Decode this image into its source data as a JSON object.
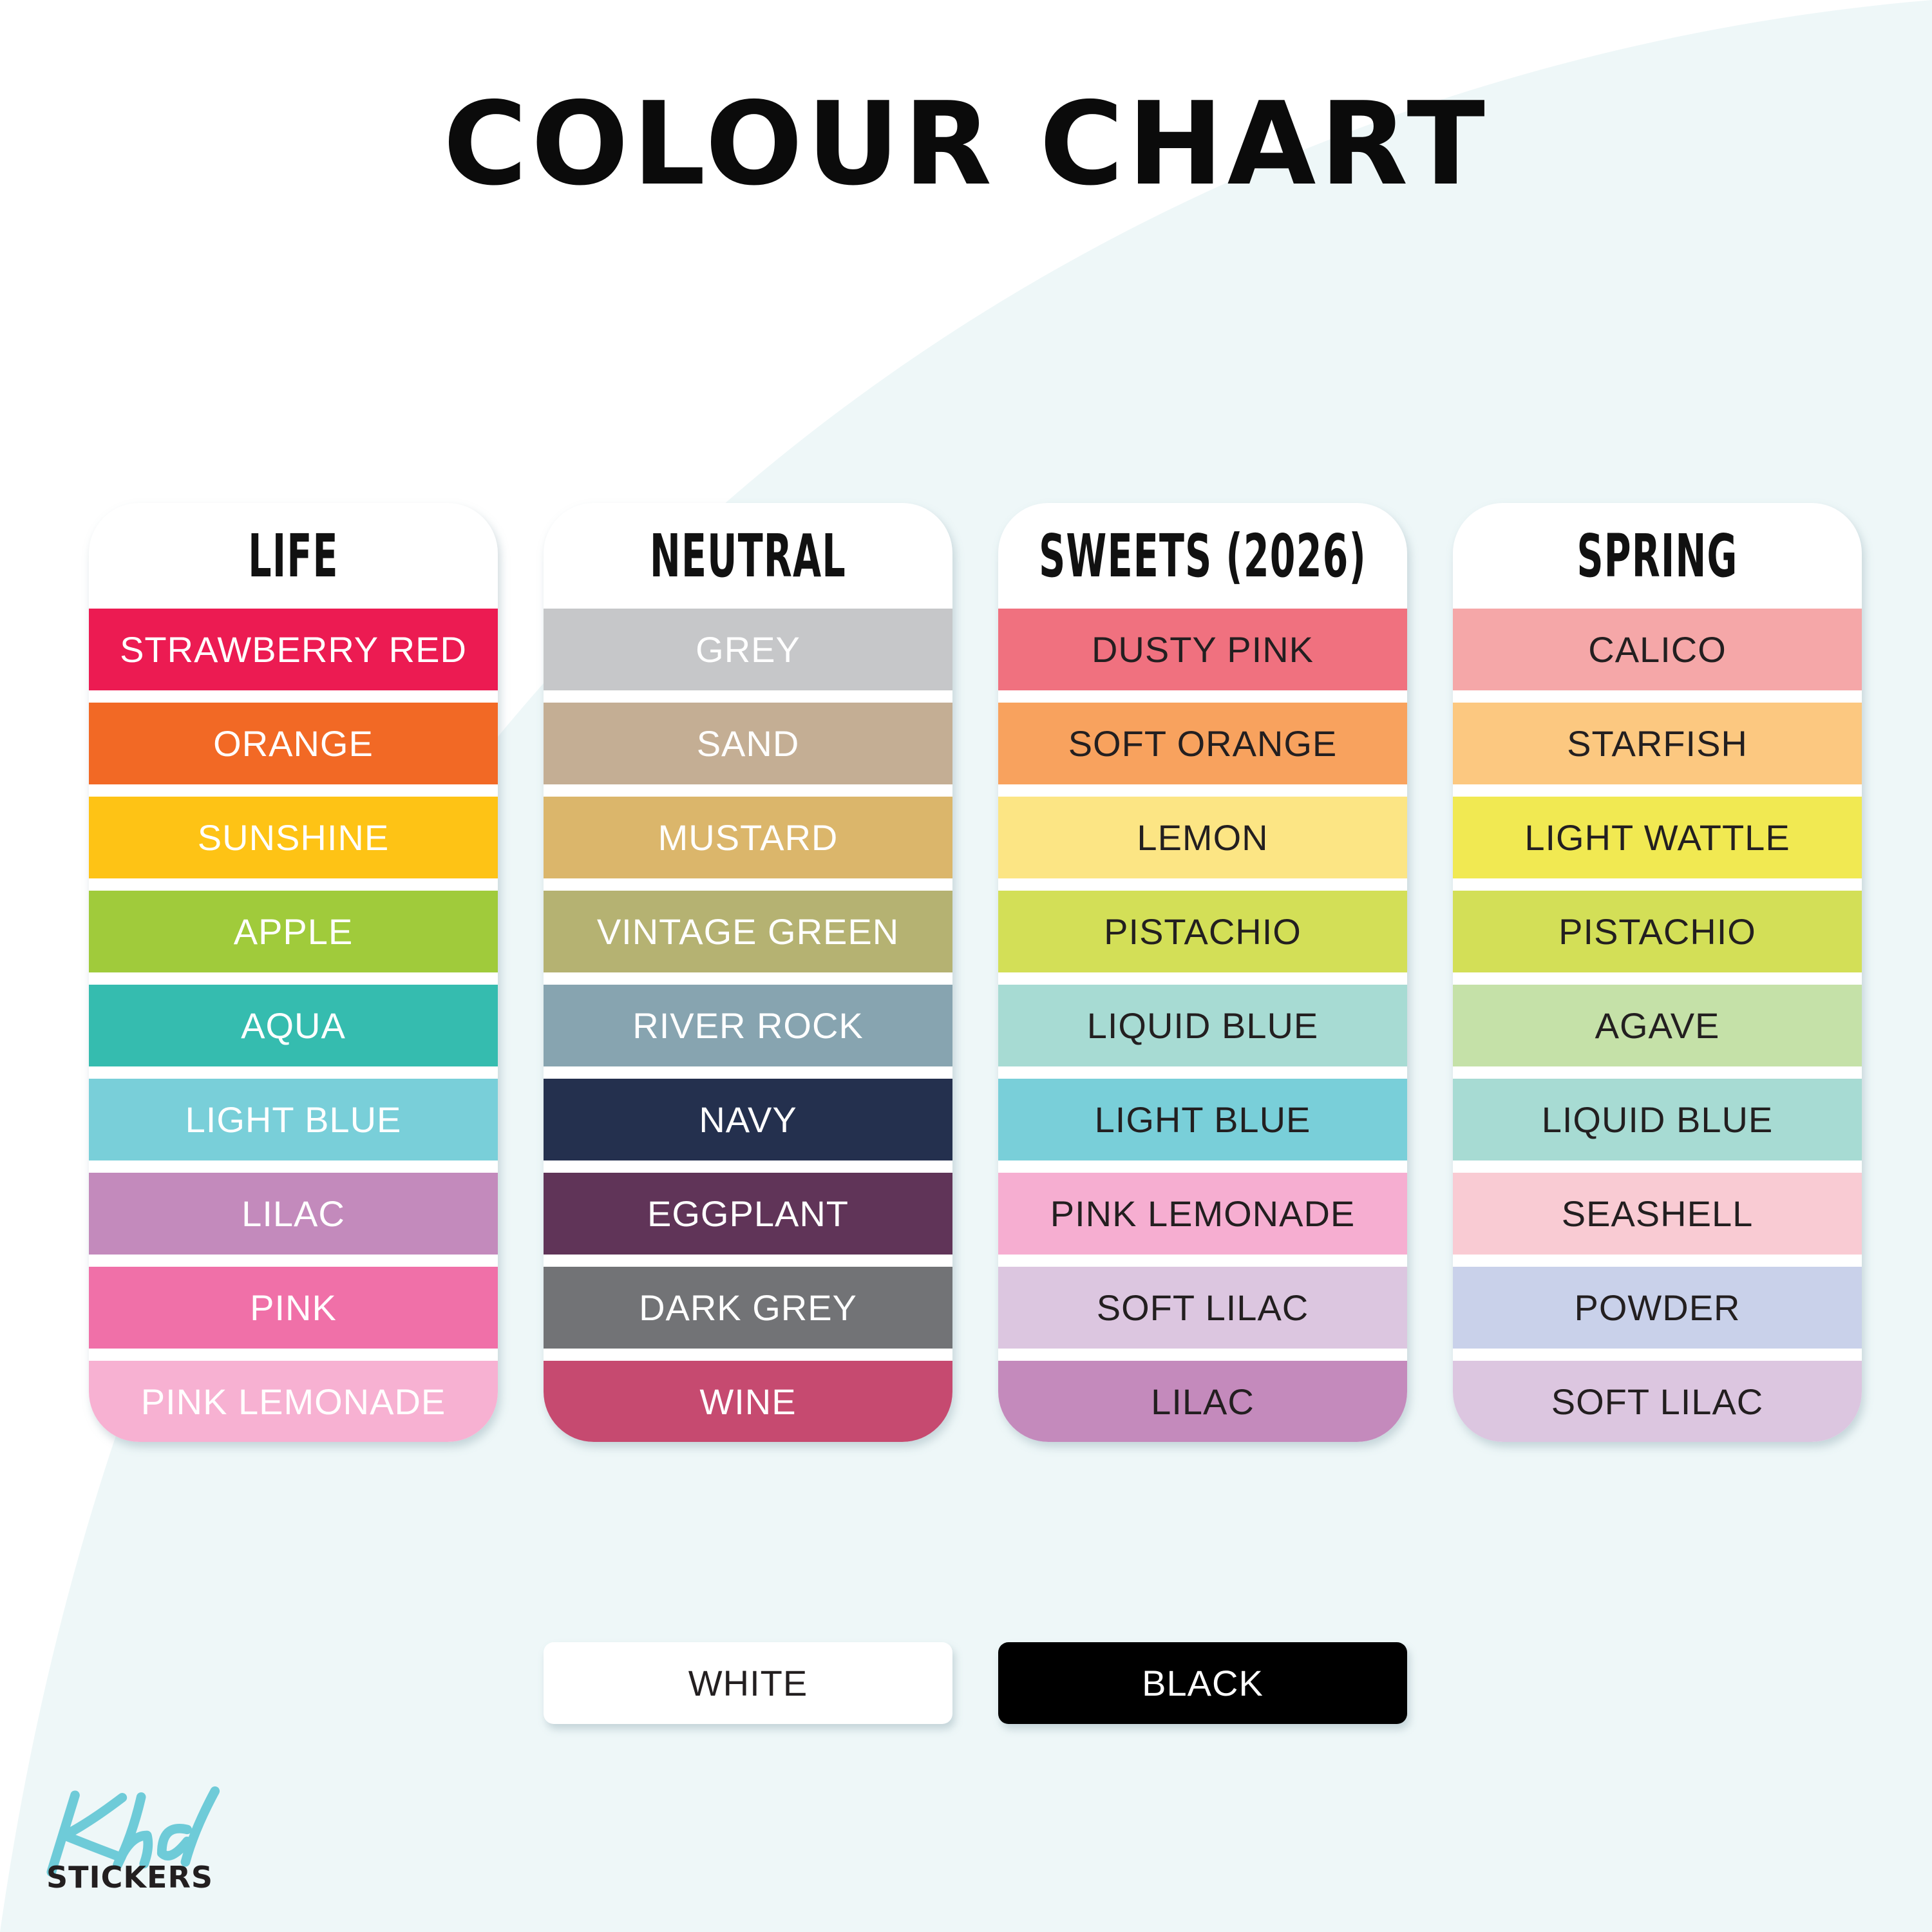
{
  "title": "COLOUR CHART",
  "colors": {
    "background": "#eef7f8",
    "dark_text": "#231f20",
    "logo_accent": "#6ecbd8"
  },
  "collections": [
    {
      "name": "LIFE",
      "items": [
        {
          "label": "STRAWBERRY RED",
          "color": "#ec1b52",
          "text": "#ffffff"
        },
        {
          "label": "ORANGE",
          "color": "#f26925",
          "text": "#ffffff"
        },
        {
          "label": "SUNSHINE",
          "color": "#fec315",
          "text": "#ffffff"
        },
        {
          "label": "APPLE",
          "color": "#a0cb3b",
          "text": "#ffffff"
        },
        {
          "label": "AQUA",
          "color": "#35bcaf",
          "text": "#ffffff"
        },
        {
          "label": "LIGHT BLUE",
          "color": "#79cfd9",
          "text": "#ffffff"
        },
        {
          "label": "LILAC",
          "color": "#c38abc",
          "text": "#ffffff"
        },
        {
          "label": "PINK",
          "color": "#f070a8",
          "text": "#ffffff"
        },
        {
          "label": "PINK LEMONADE",
          "color": "#f7b1d2",
          "text": "#ffffff"
        }
      ]
    },
    {
      "name": "NEUTRAL",
      "items": [
        {
          "label": "GREY",
          "color": "#c6c7c9",
          "text": "#ffffff"
        },
        {
          "label": "SAND",
          "color": "#c4ae94",
          "text": "#ffffff"
        },
        {
          "label": "MUSTARD",
          "color": "#dbb66b",
          "text": "#ffffff"
        },
        {
          "label": "VINTAGE GREEN",
          "color": "#b5b272",
          "text": "#ffffff"
        },
        {
          "label": "RIVER ROCK",
          "color": "#87a4b0",
          "text": "#ffffff"
        },
        {
          "label": "NAVY",
          "color": "#24304e",
          "text": "#ffffff"
        },
        {
          "label": "EGGPLANT",
          "color": "#603458",
          "text": "#ffffff"
        },
        {
          "label": "DARK GREY",
          "color": "#727376",
          "text": "#ffffff"
        },
        {
          "label": "WINE",
          "color": "#c64a70",
          "text": "#ffffff"
        }
      ]
    },
    {
      "name": "SWEETS (2026)",
      "items": [
        {
          "label": "DUSTY PINK",
          "color": "#f0717f",
          "text": "#231f20"
        },
        {
          "label": "SOFT ORANGE",
          "color": "#f8a25e",
          "text": "#231f20"
        },
        {
          "label": "LEMON",
          "color": "#fce584",
          "text": "#231f20"
        },
        {
          "label": "PISTACHIO",
          "color": "#d3df57",
          "text": "#231f20"
        },
        {
          "label": "LIQUID BLUE",
          "color": "#a7dbd3",
          "text": "#231f20"
        },
        {
          "label": "LIGHT BLUE",
          "color": "#79cfd9",
          "text": "#231f20"
        },
        {
          "label": "PINK LEMONADE",
          "color": "#f6aed1",
          "text": "#231f20"
        },
        {
          "label": "SOFT LILAC",
          "color": "#dcc6e0",
          "text": "#231f20"
        },
        {
          "label": "LILAC",
          "color": "#c48abc",
          "text": "#231f20"
        }
      ]
    },
    {
      "name": "SPRING",
      "items": [
        {
          "label": "CALICO",
          "color": "#f5a7a8",
          "text": "#231f20"
        },
        {
          "label": "STARFISH",
          "color": "#fcc880",
          "text": "#231f20"
        },
        {
          "label": "LIGHT WATTLE",
          "color": "#f1e952",
          "text": "#231f20"
        },
        {
          "label": "PISTACHIO",
          "color": "#d3df57",
          "text": "#231f20"
        },
        {
          "label": "AGAVE",
          "color": "#c5e1a8",
          "text": "#231f20"
        },
        {
          "label": "LIQUID BLUE",
          "color": "#a7dbd3",
          "text": "#231f20"
        },
        {
          "label": "SEASHELL",
          "color": "#f9cbd3",
          "text": "#231f20"
        },
        {
          "label": "POWDER",
          "color": "#c9d1ea",
          "text": "#231f20"
        },
        {
          "label": "SOFT LILAC",
          "color": "#dcc6e0",
          "text": "#231f20"
        }
      ]
    }
  ],
  "basics": [
    {
      "label": "WHITE",
      "color": "#ffffff",
      "text": "#231f20"
    },
    {
      "label": "BLACK",
      "color": "#000000",
      "text": "#ffffff"
    }
  ],
  "logo": {
    "script": "Khd",
    "text": "STICKERS"
  }
}
